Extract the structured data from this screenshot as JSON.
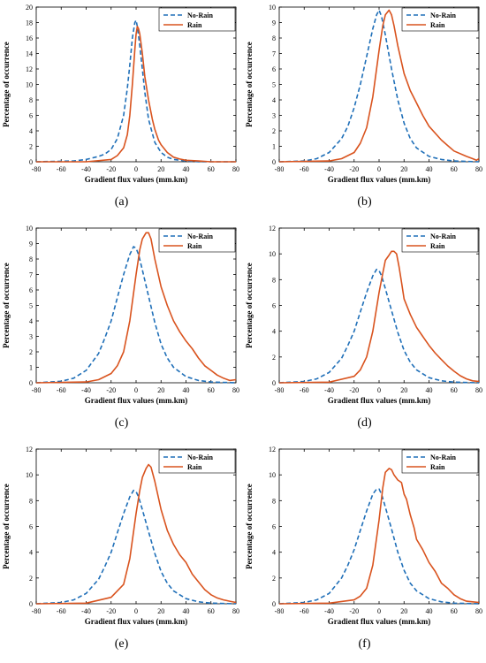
{
  "figure": {
    "panel_captions": [
      "(a)",
      "(b)",
      "(c)",
      "(d)",
      "(e)",
      "(f)"
    ],
    "colors": {
      "no_rain": "#1f6fb8",
      "rain": "#d9531e"
    }
  },
  "chart_data": [
    {
      "type": "line",
      "xlabel": "Gradient flux values (mm.km)",
      "ylabel": "Percentage of occurrence",
      "xlim": [
        -80,
        80
      ],
      "ylim": [
        0,
        20
      ],
      "xticks": [
        -80,
        -60,
        -40,
        -20,
        0,
        20,
        40,
        60,
        80
      ],
      "yticks": [
        0,
        2,
        4,
        6,
        8,
        10,
        12,
        14,
        16,
        18,
        20
      ],
      "legend": "top-right",
      "series": [
        {
          "name": "No-Rain",
          "style": "dashed",
          "x": [
            -80,
            -50,
            -40,
            -30,
            -25,
            -20,
            -15,
            -10,
            -7,
            -5,
            -3,
            -1,
            0,
            1,
            3,
            5,
            7,
            10,
            15,
            20,
            25,
            30,
            40,
            50,
            80
          ],
          "y": [
            0,
            0.1,
            0.3,
            0.7,
            1.0,
            1.6,
            3.0,
            6.0,
            9.5,
            12.5,
            16,
            18,
            18.3,
            17.5,
            15,
            12,
            9,
            5.5,
            2.5,
            1.2,
            0.6,
            0.3,
            0.1,
            0,
            0
          ]
        },
        {
          "name": "Rain",
          "style": "solid",
          "x": [
            -80,
            -40,
            -20,
            -15,
            -10,
            -7,
            -5,
            -3,
            -1,
            0,
            1,
            2,
            3,
            5,
            7,
            10,
            13,
            15,
            18,
            20,
            25,
            30,
            35,
            40,
            50,
            60,
            80
          ],
          "y": [
            0,
            0,
            0.3,
            0.8,
            1.8,
            3.5,
            6,
            10,
            14.5,
            16.5,
            17.5,
            17.2,
            16.5,
            14,
            11,
            8,
            5.5,
            4.2,
            2.8,
            2.2,
            1.2,
            0.6,
            0.35,
            0.2,
            0.1,
            0,
            0
          ]
        }
      ]
    },
    {
      "type": "line",
      "xlabel": "Gradient flux values (mm.km)",
      "ylabel": "Percentage of occurrence",
      "xlim": [
        -80,
        80
      ],
      "ylim": [
        0,
        10
      ],
      "xticks": [
        -80,
        -60,
        -40,
        -20,
        0,
        20,
        40,
        60,
        80
      ],
      "yticks": [
        0,
        1,
        2,
        3,
        4,
        5,
        6,
        7,
        8,
        9,
        10
      ],
      "legend": "top-right",
      "series": [
        {
          "name": "No-Rain",
          "style": "dashed",
          "x": [
            -80,
            -60,
            -50,
            -40,
            -30,
            -25,
            -20,
            -15,
            -10,
            -5,
            -2,
            0,
            2,
            5,
            10,
            15,
            20,
            25,
            30,
            40,
            50,
            60,
            80
          ],
          "y": [
            0,
            0.05,
            0.2,
            0.6,
            1.5,
            2.3,
            3.5,
            5.0,
            6.8,
            8.6,
            9.5,
            9.8,
            9.4,
            8.2,
            6.0,
            4.0,
            2.5,
            1.5,
            0.9,
            0.35,
            0.15,
            0.05,
            0
          ]
        },
        {
          "name": "Rain",
          "style": "solid",
          "x": [
            -80,
            -40,
            -30,
            -20,
            -15,
            -10,
            -5,
            0,
            3,
            5,
            8,
            10,
            12,
            15,
            20,
            25,
            30,
            35,
            40,
            50,
            60,
            70,
            75,
            78,
            80
          ],
          "y": [
            0,
            0.05,
            0.2,
            0.6,
            1.2,
            2.2,
            4.2,
            7.2,
            8.8,
            9.5,
            9.8,
            9.5,
            8.8,
            7.5,
            5.7,
            4.6,
            3.8,
            3.0,
            2.3,
            1.4,
            0.7,
            0.35,
            0.2,
            0.1,
            0.2
          ]
        }
      ]
    },
    {
      "type": "line",
      "xlabel": "Gradient flux values (mm.km)",
      "ylabel": "Percentage of occurrence",
      "xlim": [
        -80,
        80
      ],
      "ylim": [
        0,
        10
      ],
      "xticks": [
        -80,
        -60,
        -40,
        -20,
        0,
        20,
        40,
        60,
        80
      ],
      "yticks": [
        0,
        1,
        2,
        3,
        4,
        5,
        6,
        7,
        8,
        9,
        10
      ],
      "legend": "top-right",
      "series": [
        {
          "name": "No-Rain",
          "style": "dashed",
          "x": [
            -80,
            -60,
            -50,
            -40,
            -30,
            -25,
            -20,
            -15,
            -10,
            -5,
            -2,
            0,
            2,
            5,
            10,
            15,
            20,
            25,
            30,
            40,
            50,
            60,
            80
          ],
          "y": [
            0,
            0.1,
            0.3,
            0.8,
            1.9,
            2.9,
            4.0,
            5.5,
            7.0,
            8.3,
            8.8,
            8.7,
            8.3,
            7.3,
            5.6,
            3.9,
            2.5,
            1.6,
            1.0,
            0.4,
            0.15,
            0.05,
            0
          ]
        },
        {
          "name": "Rain",
          "style": "solid",
          "x": [
            -80,
            -40,
            -30,
            -20,
            -15,
            -10,
            -5,
            0,
            3,
            5,
            8,
            10,
            12,
            15,
            20,
            25,
            30,
            35,
            40,
            45,
            50,
            55,
            60,
            65,
            70,
            75,
            80
          ],
          "y": [
            0,
            0.05,
            0.2,
            0.6,
            1.1,
            2.0,
            4.0,
            7.0,
            8.6,
            9.3,
            9.7,
            9.7,
            9.3,
            8.0,
            6.2,
            5.0,
            4.0,
            3.3,
            2.7,
            2.2,
            1.6,
            1.1,
            0.8,
            0.5,
            0.3,
            0.15,
            0.2
          ]
        }
      ]
    },
    {
      "type": "line",
      "xlabel": "Gradient flux values (mm.km)",
      "ylabel": "Percentage of occurrence",
      "xlim": [
        -80,
        80
      ],
      "ylim": [
        0,
        12
      ],
      "xticks": [
        -80,
        -60,
        -40,
        -20,
        0,
        20,
        40,
        60,
        80
      ],
      "yticks": [
        0,
        2,
        4,
        6,
        8,
        10,
        12
      ],
      "legend": "top-right",
      "series": [
        {
          "name": "No-Rain",
          "style": "dashed",
          "x": [
            -80,
            -60,
            -50,
            -40,
            -30,
            -25,
            -20,
            -15,
            -10,
            -5,
            -2,
            0,
            2,
            5,
            10,
            15,
            20,
            25,
            30,
            40,
            50,
            60,
            80
          ],
          "y": [
            0,
            0.1,
            0.3,
            0.8,
            1.9,
            2.9,
            4.0,
            5.5,
            7.0,
            8.3,
            8.8,
            8.7,
            8.3,
            7.3,
            5.6,
            3.9,
            2.5,
            1.6,
            1.0,
            0.4,
            0.15,
            0.05,
            0
          ]
        },
        {
          "name": "Rain",
          "style": "solid",
          "x": [
            -80,
            -40,
            -20,
            -15,
            -10,
            -5,
            0,
            3,
            5,
            8,
            10,
            12,
            14,
            16,
            18,
            20,
            25,
            30,
            35,
            40,
            45,
            50,
            55,
            60,
            65,
            70,
            75,
            80
          ],
          "y": [
            0,
            0.05,
            0.5,
            1.0,
            2.0,
            4.0,
            7.0,
            8.5,
            9.5,
            9.9,
            10.2,
            10.2,
            10.0,
            9.0,
            7.8,
            6.5,
            5.3,
            4.3,
            3.6,
            2.9,
            2.3,
            1.8,
            1.3,
            0.9,
            0.55,
            0.3,
            0.15,
            0.1
          ]
        }
      ]
    },
    {
      "type": "line",
      "xlabel": "Gradient flux values (mm.km)",
      "ylabel": "Percentage of occurrence",
      "xlim": [
        -80,
        80
      ],
      "ylim": [
        0,
        12
      ],
      "xticks": [
        -80,
        -60,
        -40,
        -20,
        0,
        20,
        40,
        60,
        80
      ],
      "yticks": [
        0,
        2,
        4,
        6,
        8,
        10,
        12
      ],
      "legend": "top-right",
      "series": [
        {
          "name": "No-Rain",
          "style": "dashed",
          "x": [
            -80,
            -60,
            -50,
            -40,
            -30,
            -25,
            -20,
            -15,
            -10,
            -5,
            -2,
            0,
            2,
            5,
            10,
            15,
            20,
            25,
            30,
            40,
            50,
            60,
            80
          ],
          "y": [
            0,
            0.1,
            0.3,
            0.8,
            1.9,
            2.9,
            4.0,
            5.5,
            7.0,
            8.3,
            8.8,
            8.7,
            8.3,
            7.3,
            5.6,
            3.9,
            2.5,
            1.6,
            1.0,
            0.4,
            0.15,
            0.05,
            0
          ]
        },
        {
          "name": "Rain",
          "style": "solid",
          "x": [
            -80,
            -40,
            -20,
            -15,
            -10,
            -5,
            0,
            3,
            5,
            8,
            10,
            12,
            15,
            20,
            25,
            30,
            35,
            40,
            45,
            50,
            55,
            60,
            65,
            70,
            75,
            80
          ],
          "y": [
            0,
            0.05,
            0.5,
            1.0,
            1.5,
            3.5,
            7.0,
            8.8,
            9.8,
            10.5,
            10.8,
            10.6,
            9.5,
            7.3,
            5.7,
            4.6,
            3.8,
            3.2,
            2.3,
            1.7,
            1.1,
            0.7,
            0.45,
            0.3,
            0.2,
            0.1
          ]
        }
      ]
    },
    {
      "type": "line",
      "xlabel": "Gradient flux values (mm.km)",
      "ylabel": "Percentage of occurrence",
      "xlim": [
        -80,
        80
      ],
      "ylim": [
        0,
        12
      ],
      "xticks": [
        -80,
        -60,
        -40,
        -20,
        0,
        20,
        40,
        60,
        80
      ],
      "yticks": [
        0,
        2,
        4,
        6,
        8,
        10,
        12
      ],
      "legend": "top-right",
      "series": [
        {
          "name": "No-Rain",
          "style": "dashed",
          "x": [
            -80,
            -60,
            -50,
            -40,
            -30,
            -25,
            -20,
            -15,
            -10,
            -5,
            -2,
            0,
            2,
            5,
            10,
            15,
            20,
            25,
            30,
            40,
            50,
            60,
            80
          ],
          "y": [
            0,
            0.1,
            0.3,
            0.8,
            2.0,
            3.0,
            4.2,
            5.7,
            7.2,
            8.5,
            8.9,
            8.9,
            8.5,
            7.5,
            5.8,
            4.0,
            2.6,
            1.6,
            1.0,
            0.4,
            0.15,
            0.05,
            0
          ]
        },
        {
          "name": "Rain",
          "style": "solid",
          "x": [
            -80,
            -40,
            -20,
            -15,
            -10,
            -5,
            0,
            3,
            5,
            8,
            10,
            12,
            15,
            18,
            20,
            22,
            25,
            28,
            30,
            35,
            40,
            45,
            50,
            55,
            60,
            65,
            70,
            75,
            80
          ],
          "y": [
            0,
            0.05,
            0.3,
            0.6,
            1.2,
            3.0,
            6.5,
            9.0,
            10.2,
            10.5,
            10.4,
            10.0,
            9.6,
            9.4,
            8.5,
            8.1,
            6.9,
            5.9,
            5.0,
            4.2,
            3.2,
            2.5,
            1.6,
            1.2,
            0.7,
            0.4,
            0.2,
            0.15,
            0.1
          ]
        }
      ]
    }
  ]
}
